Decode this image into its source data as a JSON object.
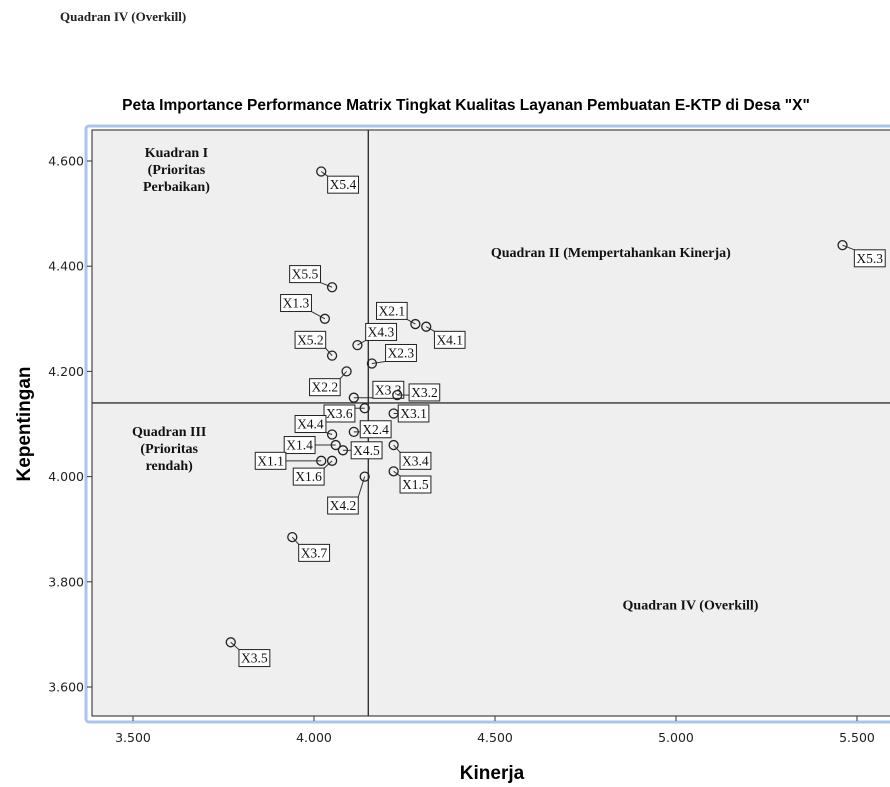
{
  "caption": "Quadran IV (Overkill)",
  "chart_data": {
    "type": "scatter",
    "title": "Peta Importance Performance Matrix Tingkat Kualitas Layanan Pembuatan E-KTP di Desa \"X\"",
    "xlabel": "Kinerja",
    "ylabel": "Kepentingan",
    "xlim": [
      3.4,
      5.6
    ],
    "ylim": [
      3.55,
      4.65
    ],
    "x_ticks": [
      "3.500",
      "4.000",
      "4.500",
      "5.000",
      "5.500"
    ],
    "x_tick_values": [
      3.5,
      4.0,
      4.5,
      5.0,
      5.5
    ],
    "y_ticks": [
      "3.600",
      "3.800",
      "4.000",
      "4.200",
      "4.400",
      "4.600"
    ],
    "y_tick_values": [
      3.6,
      3.8,
      4.0,
      4.2,
      4.4,
      4.6
    ],
    "reference_lines": {
      "x": 4.15,
      "y": 4.14
    },
    "quadrant_labels": [
      {
        "lines": [
          "Kuadran I",
          "(Prioritas",
          "Perbaikan)"
        ],
        "x": 3.62,
        "y": 4.6
      },
      {
        "lines": [
          "Quadran II (Mempertahankan Kinerja)"
        ],
        "x": 4.82,
        "y": 4.41
      },
      {
        "lines": [
          "Quadran III",
          "(Prioritas",
          "rendah)"
        ],
        "x": 3.6,
        "y": 4.07
      },
      {
        "lines": [
          "Quadran IV (Overkill)"
        ],
        "x": 5.04,
        "y": 3.74
      }
    ],
    "points": [
      {
        "label": "X5.4",
        "x": 4.02,
        "y": 4.58,
        "lx": 4.08,
        "ly": 4.555
      },
      {
        "label": "X5.3",
        "x": 5.46,
        "y": 4.44,
        "lx": 5.535,
        "ly": 4.415
      },
      {
        "label": "X5.5",
        "x": 4.05,
        "y": 4.36,
        "lx": 3.975,
        "ly": 4.385
      },
      {
        "label": "X1.3",
        "x": 4.03,
        "y": 4.3,
        "lx": 3.95,
        "ly": 4.33
      },
      {
        "label": "X2.1",
        "x": 4.28,
        "y": 4.29,
        "lx": 4.215,
        "ly": 4.315
      },
      {
        "label": "X4.1",
        "x": 4.31,
        "y": 4.285,
        "lx": 4.375,
        "ly": 4.26
      },
      {
        "label": "X4.3",
        "x": 4.12,
        "y": 4.25,
        "lx": 4.185,
        "ly": 4.275
      },
      {
        "label": "X5.2",
        "x": 4.05,
        "y": 4.23,
        "lx": 3.99,
        "ly": 4.26
      },
      {
        "label": "X2.3",
        "x": 4.16,
        "y": 4.215,
        "lx": 4.24,
        "ly": 4.235
      },
      {
        "label": "X2.2",
        "x": 4.09,
        "y": 4.2,
        "lx": 4.03,
        "ly": 4.17
      },
      {
        "label": "X3.3",
        "x": 4.11,
        "y": 4.15,
        "lx": 4.205,
        "ly": 4.165
      },
      {
        "label": "X3.2",
        "x": 4.23,
        "y": 4.155,
        "lx": 4.305,
        "ly": 4.16
      },
      {
        "label": "X3.1",
        "x": 4.22,
        "y": 4.12,
        "lx": 4.275,
        "ly": 4.12
      },
      {
        "label": "X3.6",
        "x": 4.14,
        "y": 4.13,
        "lx": 4.07,
        "ly": 4.12
      },
      {
        "label": "X4.4",
        "x": 4.05,
        "y": 4.08,
        "lx": 3.99,
        "ly": 4.1
      },
      {
        "label": "X2.4",
        "x": 4.11,
        "y": 4.085,
        "lx": 4.17,
        "ly": 4.09
      },
      {
        "label": "X1.4",
        "x": 4.06,
        "y": 4.06,
        "lx": 3.96,
        "ly": 4.06
      },
      {
        "label": "X4.5",
        "x": 4.08,
        "y": 4.05,
        "lx": 4.145,
        "ly": 4.05
      },
      {
        "label": "X1.1",
        "x": 4.02,
        "y": 4.03,
        "lx": 3.88,
        "ly": 4.03
      },
      {
        "label": "X3.4",
        "x": 4.22,
        "y": 4.06,
        "lx": 4.28,
        "ly": 4.03
      },
      {
        "label": "X1.6",
        "x": 4.05,
        "y": 4.03,
        "lx": 3.985,
        "ly": 4.0
      },
      {
        "label": "X1.5",
        "x": 4.22,
        "y": 4.01,
        "lx": 4.28,
        "ly": 3.985
      },
      {
        "label": "X4.2",
        "x": 4.14,
        "y": 4.0,
        "lx": 4.08,
        "ly": 3.945
      },
      {
        "label": "X3.7",
        "x": 3.94,
        "y": 3.885,
        "lx": 4.0,
        "ly": 3.855
      },
      {
        "label": "X3.5",
        "x": 3.77,
        "y": 3.685,
        "lx": 3.835,
        "ly": 3.655
      }
    ]
  }
}
